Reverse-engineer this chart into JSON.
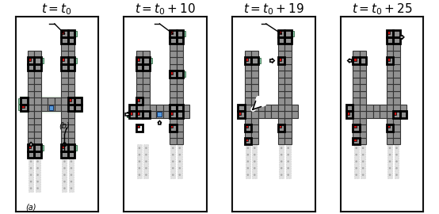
{
  "titles": [
    "$t = t_0$",
    "$t = t_0 + 10$",
    "$t = t_0 + 19$",
    "$t = t_0 + 25$"
  ],
  "title_fontsize": 11,
  "gray_dark": "#5a5a5a",
  "gray_med": "#919191",
  "gray_light": "#c0c0c0",
  "red_col": "#cc1111",
  "green_col": "#90d4b0",
  "blue_col": "#5599dd",
  "white_col": "#ffffff",
  "bg_col": "#ffffff",
  "cell_edge": "#333333",
  "outline_col": "#000000",
  "dot_col": "#aaaaaa",
  "highlight_col": "#e8ece8",
  "cs": 1.0
}
